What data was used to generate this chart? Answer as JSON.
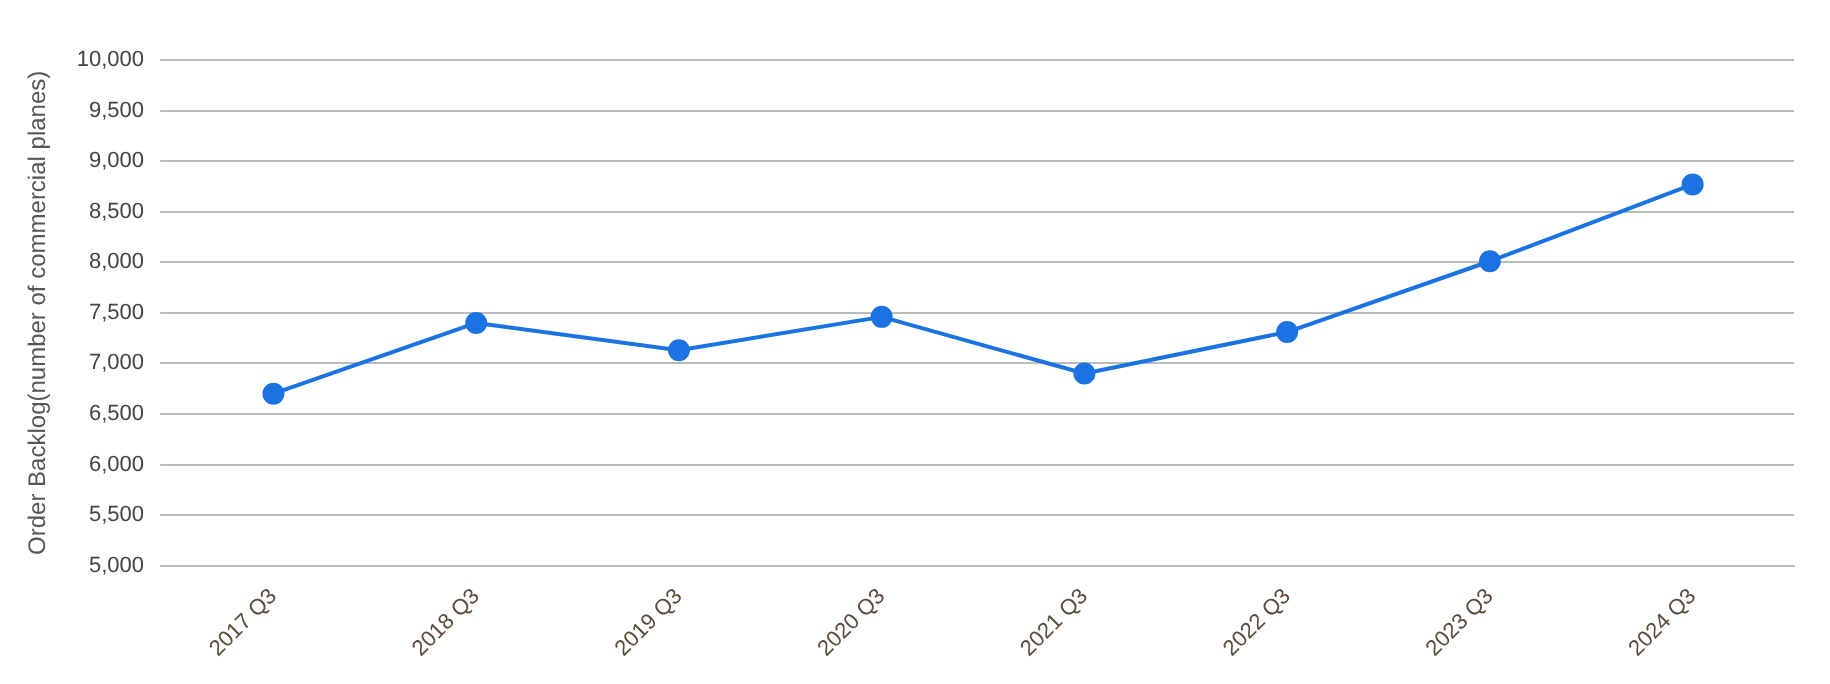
{
  "chart_data": {
    "type": "line",
    "ylabel": "Order Backlog(number of commercial planes)",
    "categories": [
      "2017 Q3",
      "2018 Q3",
      "2019 Q3",
      "2020 Q3",
      "2021 Q3",
      "2022 Q3",
      "2023 Q3",
      "2024 Q3"
    ],
    "series": [
      {
        "color": "#1a73e0",
        "values": [
          6700,
          7400,
          7130,
          7460,
          6900,
          7310,
          8010,
          8770
        ]
      }
    ],
    "ylim": [
      5000,
      10000
    ],
    "yticks": [
      {
        "value": 5000,
        "label": "5,000"
      },
      {
        "value": 5500,
        "label": "5,500"
      },
      {
        "value": 6000,
        "label": "6,000"
      },
      {
        "value": 6500,
        "label": "6,500"
      },
      {
        "value": 7000,
        "label": "7,000"
      },
      {
        "value": 7500,
        "label": "7,500"
      },
      {
        "value": 8000,
        "label": "8,000"
      },
      {
        "value": 8500,
        "label": "8,500"
      },
      {
        "value": 9000,
        "label": "9,000"
      },
      {
        "value": 9500,
        "label": "9,500"
      },
      {
        "value": 10000,
        "label": "10,000"
      }
    ],
    "grid": "y",
    "legend": false,
    "marker": "circle",
    "line_style": "solid"
  }
}
